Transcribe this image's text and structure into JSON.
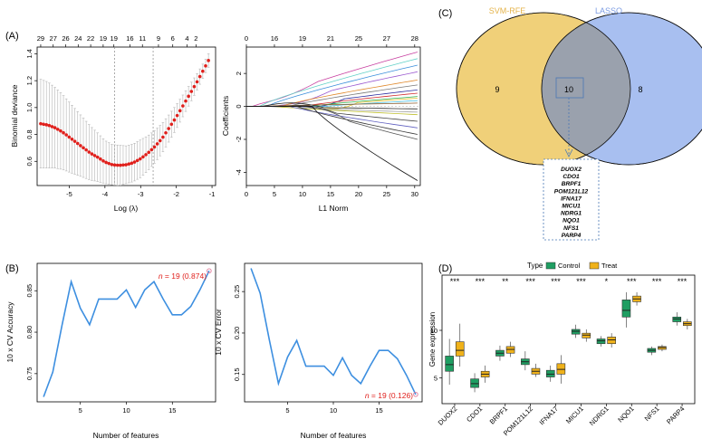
{
  "panels": {
    "A": "(A)",
    "B": "(B)",
    "C": "(C)",
    "D": "(D)"
  },
  "colors": {
    "lasso_points": "#e0201c",
    "curve_blue": "#3d8fe0",
    "red_text": "#e0201c",
    "svm_fill": "#f0d079",
    "lasso_fill": "#a8bff0",
    "overlap_fill": "#9aa1ad",
    "control": "#1f9e62",
    "treat": "#f0b21a",
    "svm_label": "#e4b34a",
    "lasso_label": "#7d9de3"
  },
  "chart_data": [
    {
      "id": "A-left",
      "type": "scatter",
      "xlabel": "Log (λ)",
      "ylabel": "Binomial deviance",
      "xlim": [
        -5.9,
        -0.9
      ],
      "ylim": [
        0.42,
        1.45
      ],
      "xticks": [
        -5,
        -4,
        -3,
        -2,
        -1
      ],
      "yticks": [
        0.6,
        0.8,
        1.0,
        1.2,
        1.4
      ],
      "top_ticks_x": [
        -5.8,
        -5.45,
        -5.1,
        -4.75,
        -4.4,
        -4.05,
        -3.75,
        -3.3,
        -2.95,
        -2.5,
        -2.1,
        -1.7,
        -1.45,
        -1.25
      ],
      "top_ticks": [
        "29",
        "27",
        "26",
        "24",
        "22",
        "19",
        "19",
        "16",
        "11",
        "9",
        "6",
        "4",
        "2",
        ""
      ],
      "top_ticks_show": [
        "29",
        "27",
        "26",
        "24",
        "22",
        "19",
        "19",
        "16",
        "11",
        "9",
        "6",
        "4",
        "2"
      ],
      "vlines": [
        -3.73,
        -2.65
      ],
      "x": [
        -5.8,
        -5.6,
        -5.4,
        -5.2,
        -5.0,
        -4.8,
        -4.6,
        -4.4,
        -4.2,
        -4.0,
        -3.8,
        -3.6,
        -3.4,
        -3.2,
        -3.0,
        -2.8,
        -2.6,
        -2.4,
        -2.2,
        -2.0,
        -1.8,
        -1.6,
        -1.4,
        -1.2,
        -1.1
      ],
      "y": [
        0.88,
        0.87,
        0.85,
        0.82,
        0.78,
        0.74,
        0.7,
        0.66,
        0.63,
        0.595,
        0.575,
        0.57,
        0.575,
        0.59,
        0.62,
        0.66,
        0.71,
        0.77,
        0.85,
        0.93,
        1.02,
        1.11,
        1.2,
        1.3,
        1.35
      ],
      "err": [
        0.33,
        0.32,
        0.3,
        0.28,
        0.26,
        0.24,
        0.22,
        0.2,
        0.18,
        0.16,
        0.15,
        0.15,
        0.14,
        0.14,
        0.14,
        0.13,
        0.12,
        0.11,
        0.1,
        0.09,
        0.08,
        0.07,
        0.06,
        0.05,
        0.05
      ]
    },
    {
      "id": "A-right",
      "type": "line",
      "xlabel": "L1 Norm",
      "ylabel": "Coefficients",
      "xlim": [
        0,
        31
      ],
      "ylim": [
        -4.8,
        3.6
      ],
      "xticks": [
        0,
        5,
        10,
        15,
        20,
        25,
        30
      ],
      "yticks": [
        -4,
        -2,
        0,
        2
      ],
      "top_ticks_x": [
        0,
        5,
        10,
        15,
        20,
        25,
        30
      ],
      "top_ticks": [
        "0",
        "16",
        "19",
        "21",
        "25",
        "27",
        "28"
      ],
      "endpoints": [
        3.3,
        2.9,
        2.5,
        2.1,
        1.6,
        1.3,
        1.0,
        0.8,
        0.6,
        0.5,
        0.35,
        0.2,
        -0.15,
        -0.35,
        -0.5,
        -0.9,
        -1.3,
        -1.7,
        -2.0,
        -4.5
      ],
      "series_colors": [
        "#c83fa0",
        "#62d1c7",
        "#3b8fdb",
        "#9b59d0",
        "#e08a2e",
        "#7a7a7a",
        "#2b2b9e",
        "#d02a2a",
        "#2fae4a",
        "#e0c02e",
        "#4dc0e0",
        "#8a5a2b",
        "#2b2b2b",
        "#a0a0a0",
        "#c0c030",
        "#444444",
        "#6060c0",
        "#3a3a3a",
        "#555555",
        "#111111"
      ]
    },
    {
      "id": "B-left",
      "type": "line",
      "xlabel": "Number of features",
      "ylabel": "10 x CV Accuracy",
      "xlim": [
        0.3,
        19.7
      ],
      "ylim": [
        0.716,
        0.883
      ],
      "xticks": [
        5,
        10,
        15
      ],
      "yticks": [
        0.75,
        0.8,
        0.85
      ],
      "x": [
        1,
        2,
        3,
        4,
        5,
        6,
        7,
        8,
        9,
        10,
        11,
        12,
        13,
        14,
        15,
        16,
        17,
        18,
        19
      ],
      "y": [
        0.722,
        0.752,
        0.808,
        0.861,
        0.829,
        0.809,
        0.84,
        0.84,
        0.84,
        0.851,
        0.83,
        0.851,
        0.861,
        0.84,
        0.821,
        0.821,
        0.831,
        0.851,
        0.874
      ],
      "annotation": {
        "n_sym": "n",
        "text": " = 19 (0.874)"
      }
    },
    {
      "id": "B-right",
      "type": "line",
      "xlabel": "Number of features",
      "ylabel": "10 x CV Error",
      "xlim": [
        0.3,
        19.7
      ],
      "ylim": [
        0.117,
        0.284
      ],
      "xticks": [
        5,
        10,
        15
      ],
      "yticks": [
        0.15,
        0.2,
        0.25
      ],
      "x": [
        1,
        2,
        3,
        4,
        5,
        6,
        7,
        8,
        9,
        10,
        11,
        12,
        13,
        14,
        15,
        16,
        17,
        18,
        19
      ],
      "y": [
        0.278,
        0.248,
        0.192,
        0.139,
        0.171,
        0.191,
        0.16,
        0.16,
        0.16,
        0.149,
        0.17,
        0.149,
        0.139,
        0.16,
        0.179,
        0.179,
        0.169,
        0.149,
        0.126
      ],
      "annotation": {
        "n_sym": "n",
        "text": " = 19 (0.126)"
      }
    },
    {
      "id": "D",
      "type": "box",
      "ylabel": "Gene expression",
      "legend_title": "Type",
      "legend": [
        "Control",
        "Treat"
      ],
      "ylim": [
        2.3,
        15.8
      ],
      "yticks": [
        5,
        10
      ],
      "categories": [
        "DUOX2",
        "CDO1",
        "BRPF1",
        "POM121L12",
        "IFNA17",
        "MICU1",
        "NDRG1",
        "NQO1",
        "NFS1",
        "PARP4"
      ],
      "significance": [
        "***",
        "***",
        "**",
        "***",
        "***",
        "***",
        "*",
        "***",
        "***",
        "***"
      ],
      "control": [
        [
          4.3,
          5.7,
          6.4,
          7.3,
          9.1
        ],
        [
          3.5,
          4.0,
          4.4,
          4.9,
          5.5
        ],
        [
          6.8,
          7.3,
          7.6,
          7.9,
          8.4
        ],
        [
          5.8,
          6.4,
          6.7,
          7.0,
          7.8
        ],
        [
          4.6,
          5.1,
          5.4,
          5.8,
          6.3
        ],
        [
          9.2,
          9.6,
          9.9,
          10.1,
          10.6
        ],
        [
          8.3,
          8.6,
          8.9,
          9.1,
          9.4
        ],
        [
          10.3,
          11.4,
          12.1,
          13.2,
          14.0
        ],
        [
          7.4,
          7.7,
          7.9,
          8.1,
          8.3
        ],
        [
          10.5,
          10.9,
          11.2,
          11.4,
          11.9
        ]
      ],
      "treat": [
        [
          6.2,
          7.3,
          7.9,
          8.8,
          10.7
        ],
        [
          4.5,
          5.1,
          5.4,
          5.7,
          6.3
        ],
        [
          7.2,
          7.6,
          8.0,
          8.3,
          8.8
        ],
        [
          5.1,
          5.4,
          5.7,
          6.0,
          6.5
        ],
        [
          4.4,
          5.4,
          5.9,
          6.5,
          7.4
        ],
        [
          8.8,
          9.2,
          9.5,
          9.7,
          10.1
        ],
        [
          8.2,
          8.6,
          9.0,
          9.3,
          9.7
        ],
        [
          12.6,
          13.0,
          13.3,
          13.6,
          14.0
        ],
        [
          7.8,
          8.0,
          8.2,
          8.3,
          8.5
        ],
        [
          10.1,
          10.5,
          10.7,
          10.9,
          11.2
        ]
      ]
    }
  ],
  "venn": {
    "svm_label": "SVM-RFE",
    "lasso_label": "LASSO",
    "left_count": "9",
    "overlap_count": "10",
    "right_count": "8",
    "genes": [
      "DUOX2",
      "CDO1",
      "BRPF1",
      "POM121L12",
      "IFNA17",
      "MICU1",
      "NDRG1",
      "NQO1",
      "NFS1",
      "PARP4"
    ]
  }
}
